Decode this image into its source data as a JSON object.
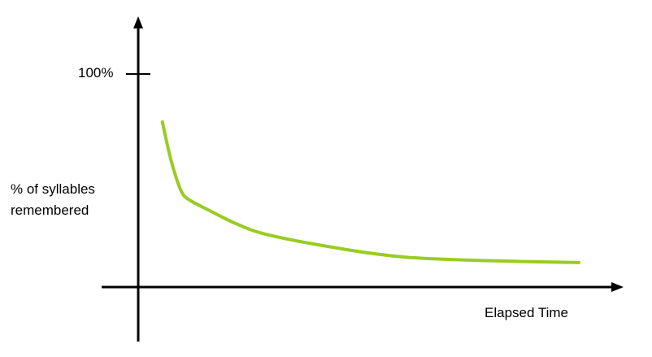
{
  "chart_data": {
    "type": "line",
    "title": "",
    "xlabel": "Elapsed Time",
    "ylabel": "% of syllables remembered",
    "ylabel_lines": [
      "% of syllables",
      "remembered"
    ],
    "y_ticks": [
      {
        "value": 100,
        "label": "100%"
      }
    ],
    "xlim": [
      0,
      100
    ],
    "ylim": [
      0,
      100
    ],
    "grid": false,
    "line_color": "#99cc22",
    "axis_color": "#000000",
    "series": [
      {
        "x": [
          5,
          6.3,
          7.4,
          8.9,
          10.5,
          15.1,
          20.2,
          26.9,
          42,
          55.5,
          72.3,
          91.1
        ],
        "y": [
          77.5,
          64,
          54.6,
          45,
          41,
          35.5,
          29.8,
          24.5,
          18,
          14,
          12.4,
          11.5
        ]
      }
    ]
  }
}
